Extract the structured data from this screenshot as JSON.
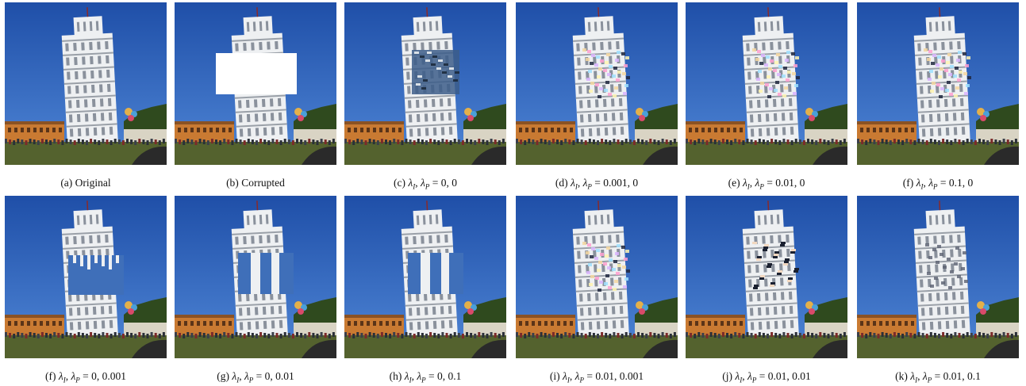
{
  "figure": {
    "rows": [
      {
        "panels": [
          {
            "id": "a",
            "tag": "(a)",
            "label": "Original",
            "math": null,
            "variant": "original"
          },
          {
            "id": "b",
            "tag": "(b)",
            "label": "Corrupted",
            "math": null,
            "variant": "corrupted"
          },
          {
            "id": "c",
            "tag": "(c)",
            "label": null,
            "math": {
              "values": "0, 0"
            },
            "variant": "blur"
          },
          {
            "id": "d",
            "tag": "(d)",
            "label": null,
            "math": {
              "values": "0.001, 0"
            },
            "variant": "color-noise"
          },
          {
            "id": "e",
            "tag": "(e)",
            "label": null,
            "math": {
              "values": "0.01, 0"
            },
            "variant": "color-noise"
          },
          {
            "id": "f1",
            "tag": "(f)",
            "label": null,
            "math": {
              "values": "0.1, 0"
            },
            "variant": "color-noise"
          }
        ]
      },
      {
        "panels": [
          {
            "id": "f2",
            "tag": "(f)",
            "label": null,
            "math": {
              "values": "0, 0.001"
            },
            "variant": "gap"
          },
          {
            "id": "g",
            "tag": "(g)",
            "label": null,
            "math": {
              "values": "0, 0.01"
            },
            "variant": "columns"
          },
          {
            "id": "h",
            "tag": "(h)",
            "label": null,
            "math": {
              "values": "0, 0.1"
            },
            "variant": "columns"
          },
          {
            "id": "i",
            "tag": "(i)",
            "label": null,
            "math": {
              "values": "0.01, 0.001"
            },
            "variant": "color-noise"
          },
          {
            "id": "j",
            "tag": "(j)",
            "label": null,
            "math": {
              "values": "0.01, 0.01"
            },
            "variant": "dark-noise"
          },
          {
            "id": "k",
            "tag": "(k)",
            "label": null,
            "math": {
              "values": "0.01, 0.1"
            },
            "variant": "filled"
          }
        ]
      }
    ],
    "lambda_symbol": "λ",
    "sub_i": "I",
    "sub_p": "P",
    "equals": " = ",
    "colors": {
      "sky_top": "#1f4fa8",
      "sky_bottom": "#4f86d6",
      "tower": "#eef0f2",
      "grass": "#54622e",
      "building": "#c97a32",
      "trees": "#2f4a1e",
      "hole": "#ffffff"
    }
  }
}
